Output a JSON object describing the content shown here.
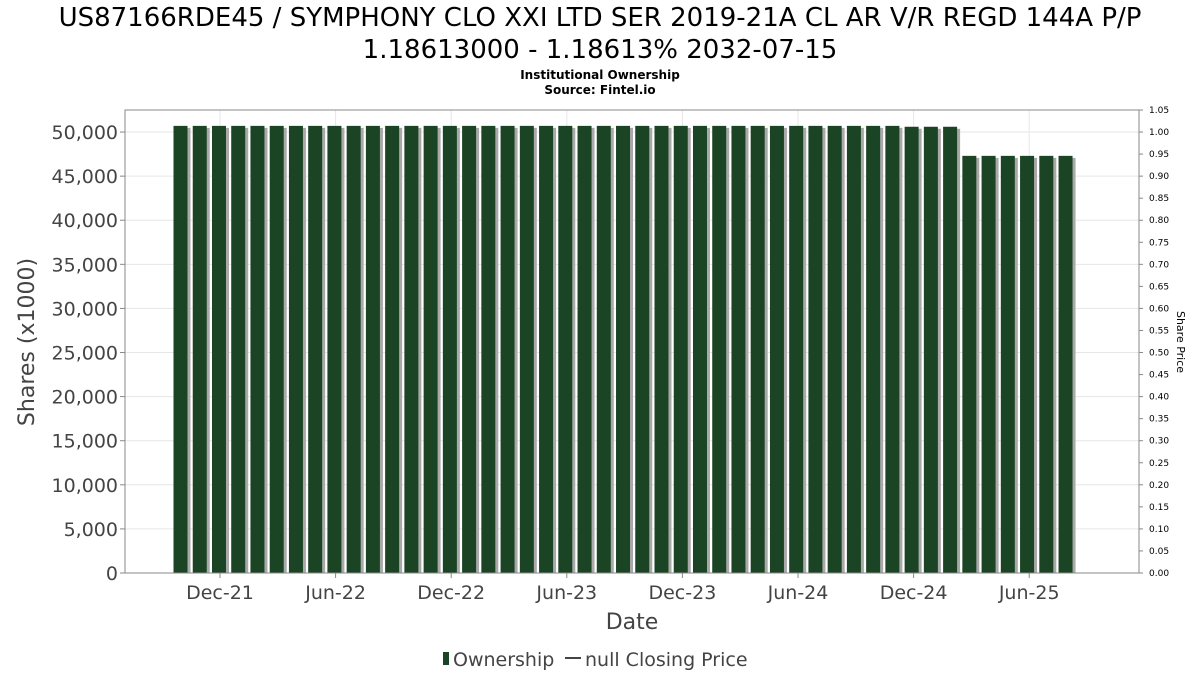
{
  "header": {
    "title_line1": "US87166RDE45 / SYMPHONY CLO XXI LTD SER 2019-21A CL AR V/R REGD 144A P/P",
    "title_line2": "1.18613000 - 1.18613% 2032-07-15",
    "subtitle_line1": "Institutional Ownership",
    "subtitle_line2": "Source: Fintel.io"
  },
  "legend": {
    "ownership": "Ownership",
    "price": "null Closing Price"
  },
  "colors": {
    "bar": "#1b4424",
    "bar_shadow": "#a9a9a9",
    "grid": "#e6e6e6",
    "axis": "#888888"
  },
  "chart_data": {
    "type": "bar",
    "xlabel": "Date",
    "ylabel": "Shares (x1000)",
    "y2label": "Share Price",
    "ylim": [
      0,
      52500
    ],
    "y2lim": [
      0,
      1.05
    ],
    "x_ticks": [
      "Dec-21",
      "Jun-22",
      "Dec-22",
      "Jun-23",
      "Dec-23",
      "Jun-24",
      "Dec-24",
      "Jun-25"
    ],
    "y_ticks": [
      "0",
      "5,000",
      "10,000",
      "15,000",
      "20,000",
      "25,000",
      "30,000",
      "35,000",
      "40,000",
      "45,000",
      "50,000"
    ],
    "y2_ticks": [
      "0.00",
      "0.05",
      "0.10",
      "0.15",
      "0.20",
      "0.25",
      "0.30",
      "0.35",
      "0.40",
      "0.45",
      "0.50",
      "0.55",
      "0.60",
      "0.65",
      "0.70",
      "0.75",
      "0.80",
      "0.85",
      "0.90",
      "0.95",
      "1.00",
      "1.05"
    ],
    "grid": true,
    "legend_position": "bottom",
    "series": [
      {
        "name": "Ownership",
        "values": [
          50700,
          50700,
          50700,
          50700,
          50700,
          50700,
          50700,
          50700,
          50700,
          50700,
          50700,
          50700,
          50700,
          50700,
          50700,
          50700,
          50700,
          50700,
          50700,
          50700,
          50700,
          50700,
          50700,
          50700,
          50700,
          50700,
          50700,
          50700,
          50700,
          50700,
          50700,
          50700,
          50700,
          50700,
          50700,
          50700,
          50700,
          50700,
          50600,
          50600,
          50600,
          47300,
          47300,
          47300,
          47300,
          47300,
          47300
        ]
      }
    ]
  }
}
